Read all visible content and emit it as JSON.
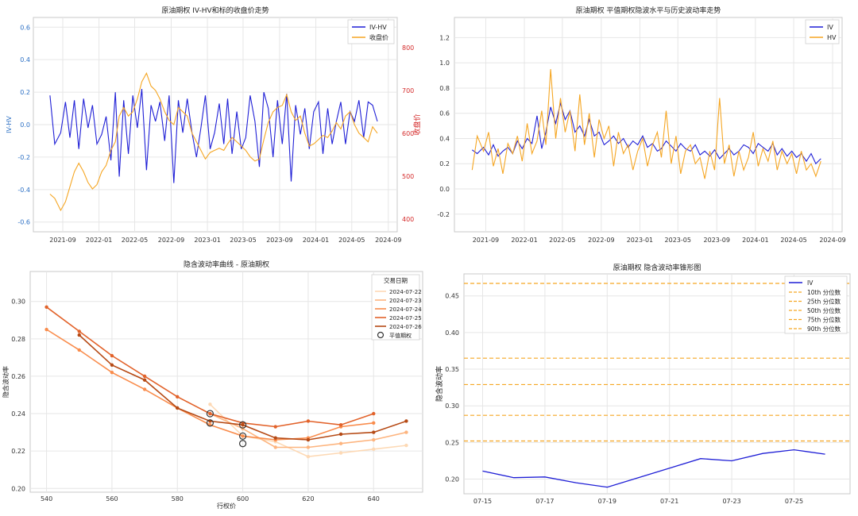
{
  "chart_data": [
    {
      "id": "p1",
      "type": "line",
      "title": "原油期权 IV-HV和标的收盘价走势",
      "xlabel": "",
      "ylabel": "IV-HV",
      "ylabel_right": "收盘价",
      "x_ticks": [
        "2021-09",
        "2022-01",
        "2022-05",
        "2022-09",
        "2023-01",
        "2023-05",
        "2023-09",
        "2024-01",
        "2024-05",
        "2024-09"
      ],
      "y_ticks": [
        "-0.6",
        "-0.4",
        "-0.2",
        "0.0",
        "0.2",
        "0.4",
        "0.6"
      ],
      "y2_ticks": [
        "400",
        "500",
        "600",
        "700",
        "800"
      ],
      "ylim": [
        -0.66,
        0.66
      ],
      "y2lim": [
        370,
        870
      ],
      "legend_position": "top-right",
      "series": [
        {
          "name": "IV-HV",
          "axis": "left",
          "color": "#1f1fd6",
          "x": [
            "2021-07-20",
            "2021-08-05",
            "2021-08-25",
            "2021-09-10",
            "2021-09-25",
            "2021-10-10",
            "2021-10-25",
            "2021-11-10",
            "2021-11-25",
            "2021-12-10",
            "2021-12-25",
            "2022-01-10",
            "2022-01-25",
            "2022-02-10",
            "2022-02-25",
            "2022-03-10",
            "2022-03-25",
            "2022-04-10",
            "2022-04-25",
            "2022-05-10",
            "2022-05-25",
            "2022-06-10",
            "2022-06-25",
            "2022-07-10",
            "2022-07-25",
            "2022-08-10",
            "2022-08-25",
            "2022-09-10",
            "2022-09-25",
            "2022-10-10",
            "2022-10-25",
            "2022-11-10",
            "2022-11-25",
            "2022-12-10",
            "2022-12-25",
            "2023-01-10",
            "2023-01-25",
            "2023-02-10",
            "2023-02-25",
            "2023-03-10",
            "2023-03-25",
            "2023-04-10",
            "2023-04-25",
            "2023-05-10",
            "2023-05-25",
            "2023-06-10",
            "2023-06-25",
            "2023-07-10",
            "2023-07-25",
            "2023-08-10",
            "2023-08-25",
            "2023-09-10",
            "2023-09-25",
            "2023-10-10",
            "2023-10-25",
            "2023-11-10",
            "2023-11-25",
            "2023-12-10",
            "2023-12-25",
            "2024-01-10",
            "2024-01-25",
            "2024-02-10",
            "2024-02-25",
            "2024-03-10",
            "2024-03-25",
            "2024-04-10",
            "2024-04-25",
            "2024-05-10",
            "2024-05-25",
            "2024-06-10",
            "2024-06-25",
            "2024-07-10",
            "2024-07-26"
          ],
          "values": [
            0.18,
            -0.12,
            -0.05,
            0.14,
            -0.08,
            0.15,
            -0.15,
            0.16,
            -0.02,
            0.12,
            -0.12,
            -0.06,
            0.05,
            -0.22,
            0.2,
            -0.32,
            0.15,
            -0.18,
            0.18,
            -0.02,
            0.22,
            -0.28,
            0.12,
            0.02,
            0.14,
            -0.1,
            0.18,
            -0.36,
            0.15,
            -0.05,
            0.16,
            -0.05,
            -0.2,
            -0.02,
            0.18,
            -0.15,
            -0.05,
            0.13,
            -0.12,
            0.16,
            -0.18,
            0.08,
            -0.15,
            -0.08,
            0.18,
            0.02,
            -0.26,
            0.2,
            0.1,
            -0.2,
            0.15,
            -0.12,
            0.19,
            -0.35,
            0.12,
            -0.06,
            0.1,
            -0.15,
            0.08,
            0.14,
            -0.18,
            0.1,
            -0.12,
            0.02,
            0.14,
            -0.12,
            0.08,
            0.02,
            0.15,
            -0.08,
            0.14,
            0.12,
            0.02
          ]
        },
        {
          "name": "收盘价",
          "axis": "right",
          "color": "#f5a623",
          "x": [
            "2021-07-20",
            "2021-08-05",
            "2021-08-25",
            "2021-09-10",
            "2021-09-25",
            "2021-10-10",
            "2021-10-25",
            "2021-11-10",
            "2021-11-25",
            "2021-12-10",
            "2021-12-25",
            "2022-01-10",
            "2022-01-25",
            "2022-02-10",
            "2022-02-25",
            "2022-03-10",
            "2022-03-25",
            "2022-04-10",
            "2022-04-25",
            "2022-05-10",
            "2022-05-25",
            "2022-06-10",
            "2022-06-25",
            "2022-07-10",
            "2022-07-25",
            "2022-08-10",
            "2022-08-25",
            "2022-09-10",
            "2022-09-25",
            "2022-10-10",
            "2022-10-25",
            "2022-11-10",
            "2022-11-25",
            "2022-12-10",
            "2022-12-25",
            "2023-01-10",
            "2023-01-25",
            "2023-02-10",
            "2023-02-25",
            "2023-03-10",
            "2023-03-25",
            "2023-04-10",
            "2023-04-25",
            "2023-05-10",
            "2023-05-25",
            "2023-06-10",
            "2023-06-25",
            "2023-07-10",
            "2023-07-25",
            "2023-08-10",
            "2023-08-25",
            "2023-09-10",
            "2023-09-25",
            "2023-10-10",
            "2023-10-25",
            "2023-11-10",
            "2023-11-25",
            "2023-12-10",
            "2023-12-25",
            "2024-01-10",
            "2024-01-25",
            "2024-02-10",
            "2024-02-25",
            "2024-03-10",
            "2024-03-25",
            "2024-04-10",
            "2024-04-25",
            "2024-05-10",
            "2024-05-25",
            "2024-06-10",
            "2024-06-25",
            "2024-07-10",
            "2024-07-26"
          ],
          "values": [
            458,
            448,
            420,
            440,
            475,
            510,
            530,
            510,
            485,
            470,
            480,
            510,
            525,
            560,
            580,
            640,
            660,
            640,
            650,
            680,
            720,
            740,
            710,
            700,
            680,
            650,
            630,
            620,
            660,
            650,
            640,
            600,
            580,
            560,
            540,
            555,
            560,
            565,
            560,
            575,
            590,
            580,
            570,
            560,
            545,
            535,
            540,
            585,
            625,
            650,
            660,
            665,
            690,
            650,
            630,
            640,
            600,
            570,
            575,
            585,
            595,
            590,
            605,
            625,
            610,
            640,
            650,
            620,
            600,
            590,
            580,
            615,
            600
          ]
        }
      ]
    },
    {
      "id": "p2",
      "type": "line",
      "title": "原油期权 平值期权隐波水平与历史波动率走势",
      "xlabel": "",
      "ylabel": "",
      "x_ticks": [
        "2021-09",
        "2022-01",
        "2022-05",
        "2022-09",
        "2023-01",
        "2023-05",
        "2023-09",
        "2024-01",
        "2024-05",
        "2024-09"
      ],
      "y_ticks": [
        "-0.2",
        "0.0",
        "0.2",
        "0.4",
        "0.6",
        "0.8",
        "1.0",
        "1.2"
      ],
      "ylim": [
        -0.34,
        1.36
      ],
      "legend_position": "top-right",
      "series": [
        {
          "name": "IV",
          "color": "#1f1fd6",
          "x": [
            "2021-07-20",
            "2021-08-05",
            "2021-08-25",
            "2021-09-10",
            "2021-09-25",
            "2021-10-10",
            "2021-10-25",
            "2021-11-10",
            "2021-11-25",
            "2021-12-10",
            "2021-12-25",
            "2022-01-10",
            "2022-01-25",
            "2022-02-10",
            "2022-02-25",
            "2022-03-10",
            "2022-03-25",
            "2022-04-10",
            "2022-04-25",
            "2022-05-10",
            "2022-05-25",
            "2022-06-10",
            "2022-06-25",
            "2022-07-10",
            "2022-07-25",
            "2022-08-10",
            "2022-08-25",
            "2022-09-10",
            "2022-09-25",
            "2022-10-10",
            "2022-10-25",
            "2022-11-10",
            "2022-11-25",
            "2022-12-10",
            "2022-12-25",
            "2023-01-10",
            "2023-01-25",
            "2023-02-10",
            "2023-02-25",
            "2023-03-10",
            "2023-03-25",
            "2023-04-10",
            "2023-04-25",
            "2023-05-10",
            "2023-05-25",
            "2023-06-10",
            "2023-06-25",
            "2023-07-10",
            "2023-07-25",
            "2023-08-10",
            "2023-08-25",
            "2023-09-10",
            "2023-09-25",
            "2023-10-10",
            "2023-10-25",
            "2023-11-10",
            "2023-11-25",
            "2023-12-10",
            "2023-12-25",
            "2024-01-10",
            "2024-01-25",
            "2024-02-10",
            "2024-02-25",
            "2024-03-10",
            "2024-03-25",
            "2024-04-10",
            "2024-04-25",
            "2024-05-10",
            "2024-05-25",
            "2024-06-10",
            "2024-06-25",
            "2024-07-10",
            "2024-07-26"
          ],
          "values": [
            0.31,
            0.28,
            0.33,
            0.27,
            0.35,
            0.26,
            0.3,
            0.33,
            0.28,
            0.38,
            0.32,
            0.4,
            0.36,
            0.58,
            0.32,
            0.45,
            0.65,
            0.52,
            0.68,
            0.55,
            0.62,
            0.45,
            0.5,
            0.42,
            0.55,
            0.42,
            0.45,
            0.35,
            0.38,
            0.42,
            0.36,
            0.4,
            0.33,
            0.38,
            0.35,
            0.42,
            0.33,
            0.36,
            0.3,
            0.32,
            0.38,
            0.34,
            0.3,
            0.36,
            0.32,
            0.3,
            0.35,
            0.27,
            0.3,
            0.26,
            0.31,
            0.24,
            0.28,
            0.32,
            0.27,
            0.3,
            0.35,
            0.33,
            0.28,
            0.36,
            0.33,
            0.3,
            0.36,
            0.27,
            0.32,
            0.26,
            0.3,
            0.25,
            0.28,
            0.22,
            0.28,
            0.2,
            0.24
          ]
        },
        {
          "name": "HV",
          "color": "#f5a623",
          "x": [
            "2021-07-20",
            "2021-08-05",
            "2021-08-25",
            "2021-09-10",
            "2021-09-25",
            "2021-10-10",
            "2021-10-25",
            "2021-11-10",
            "2021-11-25",
            "2021-12-10",
            "2021-12-25",
            "2022-01-10",
            "2022-01-25",
            "2022-02-10",
            "2022-02-25",
            "2022-03-10",
            "2022-03-25",
            "2022-04-10",
            "2022-04-25",
            "2022-05-10",
            "2022-05-25",
            "2022-06-10",
            "2022-06-25",
            "2022-07-10",
            "2022-07-25",
            "2022-08-10",
            "2022-08-25",
            "2022-09-10",
            "2022-09-25",
            "2022-10-10",
            "2022-10-25",
            "2022-11-10",
            "2022-11-25",
            "2022-12-10",
            "2022-12-25",
            "2023-01-10",
            "2023-01-25",
            "2023-02-10",
            "2023-02-25",
            "2023-03-10",
            "2023-03-25",
            "2023-04-10",
            "2023-04-25",
            "2023-05-10",
            "2023-05-25",
            "2023-06-10",
            "2023-06-25",
            "2023-07-10",
            "2023-07-25",
            "2023-08-10",
            "2023-08-25",
            "2023-09-10",
            "2023-09-25",
            "2023-10-10",
            "2023-10-25",
            "2023-11-10",
            "2023-11-25",
            "2023-12-10",
            "2023-12-25",
            "2024-01-10",
            "2024-01-25",
            "2024-02-10",
            "2024-02-25",
            "2024-03-10",
            "2024-03-25",
            "2024-04-10",
            "2024-04-25",
            "2024-05-10",
            "2024-05-25",
            "2024-06-10",
            "2024-06-25",
            "2024-07-10",
            "2024-07-26"
          ],
          "values": [
            0.15,
            0.42,
            0.3,
            0.45,
            0.18,
            0.32,
            0.12,
            0.36,
            0.28,
            0.42,
            0.22,
            0.52,
            0.28,
            0.38,
            0.62,
            0.35,
            0.95,
            0.4,
            0.72,
            0.45,
            0.62,
            0.3,
            0.75,
            0.35,
            0.6,
            0.25,
            0.55,
            0.4,
            0.5,
            0.18,
            0.45,
            0.28,
            0.35,
            0.15,
            0.3,
            0.4,
            0.18,
            0.35,
            0.45,
            0.25,
            0.62,
            0.2,
            0.42,
            0.12,
            0.3,
            0.35,
            0.2,
            0.25,
            0.08,
            0.3,
            0.15,
            0.72,
            0.2,
            0.35,
            0.1,
            0.3,
            0.15,
            0.25,
            0.45,
            0.18,
            0.32,
            0.22,
            0.38,
            0.15,
            0.3,
            0.2,
            0.28,
            0.12,
            0.3,
            0.15,
            0.2,
            0.1,
            0.22
          ]
        }
      ]
    },
    {
      "id": "p3",
      "type": "line",
      "title": "隐含波动率曲线 - 原油期权",
      "xlabel": "行权价",
      "ylabel": "隐含波动率",
      "x_ticks": [
        "540",
        "560",
        "580",
        "600",
        "620",
        "640"
      ],
      "y_ticks": [
        "0.20",
        "0.22",
        "0.24",
        "0.26",
        "0.28",
        "0.30"
      ],
      "xlim": [
        535,
        655
      ],
      "ylim": [
        0.198,
        0.316
      ],
      "legend_title": "交易日期",
      "legend_position": "top-right",
      "atm_label": "平值期权",
      "series": [
        {
          "name": "2024-07-22",
          "color": "#fdd9b5",
          "x": [
            590,
            600,
            610,
            620,
            630,
            640,
            650
          ],
          "values": [
            0.245,
            0.228,
            0.225,
            0.217,
            0.219,
            0.221,
            0.223
          ]
        },
        {
          "name": "2024-07-23",
          "color": "#fdb47e",
          "x": [
            590,
            600,
            610,
            620,
            630,
            640,
            650
          ],
          "values": [
            0.24,
            0.232,
            0.222,
            0.222,
            0.224,
            0.226,
            0.23
          ]
        },
        {
          "name": "2024-07-24",
          "color": "#f98c4c",
          "x": [
            540,
            550,
            560,
            570,
            580,
            590,
            600,
            610,
            620,
            630,
            640
          ],
          "values": [
            0.285,
            0.274,
            0.262,
            0.253,
            0.243,
            0.234,
            0.228,
            0.226,
            0.227,
            0.233,
            0.235
          ]
        },
        {
          "name": "2024-07-25",
          "color": "#e2622a",
          "x": [
            540,
            550,
            560,
            570,
            580,
            590,
            600,
            610,
            620,
            630,
            640
          ],
          "values": [
            0.297,
            0.284,
            0.271,
            0.26,
            0.249,
            0.24,
            0.235,
            0.233,
            0.236,
            0.234,
            0.24
          ]
        },
        {
          "name": "2024-07-26",
          "color": "#b64a15",
          "x": [
            550,
            560,
            570,
            580,
            590,
            600,
            610,
            620,
            630,
            640,
            650
          ],
          "values": [
            0.282,
            0.266,
            0.258,
            0.243,
            0.236,
            0.234,
            0.227,
            0.226,
            0.229,
            0.23,
            0.236
          ]
        }
      ],
      "atm_points": [
        {
          "x": 590,
          "y": 0.24
        },
        {
          "x": 590,
          "y": 0.235
        },
        {
          "x": 600,
          "y": 0.234
        },
        {
          "x": 600,
          "y": 0.228
        },
        {
          "x": 600,
          "y": 0.224
        }
      ]
    },
    {
      "id": "p4",
      "type": "line",
      "title": "原油期权 隐含波动率锥形图",
      "xlabel": "",
      "ylabel": "隐含波动率",
      "x_ticks": [
        "07-15",
        "07-17",
        "07-19",
        "07-21",
        "07-23",
        "07-25"
      ],
      "y_ticks": [
        "0.20",
        "0.25",
        "0.30",
        "0.35",
        "0.40",
        "0.45"
      ],
      "xlim": [
        14.4,
        26.8
      ],
      "ylim": [
        0.18,
        0.48
      ],
      "legend_position": "top-right",
      "series": [
        {
          "name": "IV",
          "color": "#1f1fd6",
          "x": [
            15,
            16,
            17,
            18,
            19,
            20,
            21,
            22,
            23,
            24,
            25,
            26
          ],
          "values": [
            0.211,
            0.202,
            0.203,
            0.195,
            0.189,
            0.202,
            0.215,
            0.228,
            0.225,
            0.235,
            0.24,
            0.234
          ]
        }
      ],
      "percentiles": [
        {
          "name": "10th 分位数",
          "value": 0.252
        },
        {
          "name": "25th 分位数",
          "value": 0.287
        },
        {
          "name": "50th 分位数",
          "value": 0.329
        },
        {
          "name": "75th 分位数",
          "value": 0.365
        },
        {
          "name": "90th 分位数",
          "value": 0.467
        }
      ]
    }
  ]
}
